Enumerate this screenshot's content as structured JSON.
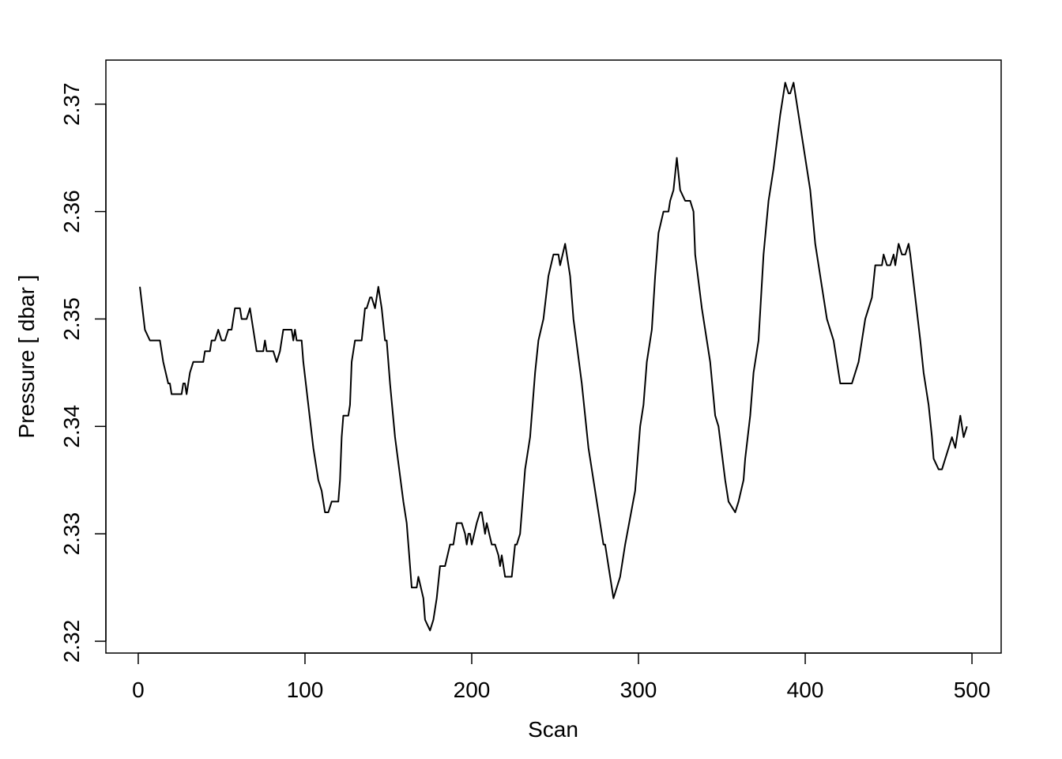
{
  "chart_data": {
    "type": "line",
    "x_label": "Scan",
    "y_label": "Pressure [ dbar ]",
    "color": "#000000",
    "x": [
      1,
      4,
      7,
      13,
      15,
      18,
      19,
      20,
      26,
      27,
      28,
      29,
      31,
      33,
      39,
      40,
      43,
      44,
      46,
      48,
      50,
      52,
      54,
      56,
      57,
      58,
      61,
      62,
      65,
      67,
      69,
      71,
      75,
      76,
      77,
      81,
      83,
      85,
      87,
      92,
      93,
      94,
      95,
      98,
      99,
      102,
      105,
      108,
      110,
      112,
      114,
      116,
      120,
      121,
      122,
      123,
      126,
      127,
      128,
      130,
      134,
      136,
      137,
      139,
      140,
      142,
      144,
      146,
      148,
      149,
      151,
      154,
      159,
      161,
      163,
      164,
      167,
      168,
      171,
      172,
      175,
      177,
      179,
      181,
      184,
      187,
      189,
      191,
      194,
      196,
      197,
      198,
      199,
      200,
      203,
      205,
      206,
      208,
      209,
      212,
      214,
      216,
      217,
      218,
      220,
      224,
      226,
      227,
      229,
      232,
      235,
      238,
      240,
      243,
      246,
      249,
      252,
      253,
      256,
      259,
      261,
      266,
      270,
      275,
      279,
      280,
      285,
      287,
      289,
      292,
      298,
      301,
      303,
      305,
      308,
      310,
      312,
      315,
      318,
      319,
      321,
      323,
      325,
      328,
      331,
      333,
      334,
      338,
      343,
      346,
      348,
      352,
      354,
      358,
      360,
      363,
      364,
      367,
      369,
      372,
      375,
      378,
      381,
      385,
      388,
      390,
      391,
      393,
      397,
      403,
      406,
      413,
      417,
      421,
      428,
      430,
      432,
      434,
      436,
      440,
      442,
      446,
      447,
      449,
      451,
      453,
      454,
      456,
      458,
      460,
      462,
      463,
      466,
      469,
      471,
      474,
      476,
      477,
      480,
      482,
      484,
      488,
      490,
      493,
      495,
      497
    ],
    "values": [
      2.353,
      2.349,
      2.348,
      2.348,
      2.346,
      2.344,
      2.344,
      2.343,
      2.343,
      2.344,
      2.344,
      2.343,
      2.345,
      2.346,
      2.346,
      2.347,
      2.347,
      2.348,
      2.348,
      2.349,
      2.348,
      2.348,
      2.349,
      2.349,
      2.35,
      2.351,
      2.351,
      2.35,
      2.35,
      2.351,
      2.349,
      2.347,
      2.347,
      2.348,
      2.347,
      2.347,
      2.346,
      2.347,
      2.349,
      2.349,
      2.348,
      2.349,
      2.348,
      2.348,
      2.346,
      2.342,
      2.338,
      2.335,
      2.334,
      2.332,
      2.332,
      2.333,
      2.333,
      2.335,
      2.339,
      2.341,
      2.341,
      2.342,
      2.346,
      2.348,
      2.348,
      2.351,
      2.351,
      2.352,
      2.352,
      2.351,
      2.353,
      2.351,
      2.348,
      2.348,
      2.344,
      2.339,
      2.333,
      2.331,
      2.327,
      2.325,
      2.325,
      2.326,
      2.324,
      2.322,
      2.321,
      2.322,
      2.324,
      2.327,
      2.327,
      2.329,
      2.329,
      2.331,
      2.331,
      2.33,
      2.329,
      2.33,
      2.33,
      2.329,
      2.331,
      2.332,
      2.332,
      2.33,
      2.331,
      2.329,
      2.329,
      2.328,
      2.327,
      2.328,
      2.326,
      2.326,
      2.329,
      2.329,
      2.33,
      2.336,
      2.339,
      2.345,
      2.348,
      2.35,
      2.354,
      2.356,
      2.356,
      2.355,
      2.357,
      2.354,
      2.35,
      2.344,
      2.338,
      2.333,
      2.329,
      2.329,
      2.324,
      2.325,
      2.326,
      2.329,
      2.334,
      2.34,
      2.342,
      2.346,
      2.349,
      2.354,
      2.358,
      2.36,
      2.36,
      2.361,
      2.362,
      2.365,
      2.362,
      2.361,
      2.361,
      2.36,
      2.356,
      2.351,
      2.346,
      2.341,
      2.34,
      2.335,
      2.333,
      2.332,
      2.333,
      2.335,
      2.337,
      2.341,
      2.345,
      2.348,
      2.356,
      2.361,
      2.364,
      2.369,
      2.372,
      2.371,
      2.371,
      2.372,
      2.368,
      2.362,
      2.357,
      2.35,
      2.348,
      2.344,
      2.344,
      2.345,
      2.346,
      2.348,
      2.35,
      2.352,
      2.355,
      2.355,
      2.356,
      2.355,
      2.355,
      2.356,
      2.355,
      2.357,
      2.356,
      2.356,
      2.357,
      2.356,
      2.352,
      2.348,
      2.345,
      2.342,
      2.339,
      2.337,
      2.336,
      2.336,
      2.337,
      2.339,
      2.338,
      2.341,
      2.339,
      2.34
    ],
    "xlim": [
      -19.4,
      517.5
    ],
    "ylim": [
      2.3189,
      2.3741
    ],
    "xticks": [
      0,
      100,
      200,
      300,
      400,
      500
    ],
    "yticks": [
      2.32,
      2.33,
      2.34,
      2.35,
      2.36,
      2.37
    ]
  }
}
